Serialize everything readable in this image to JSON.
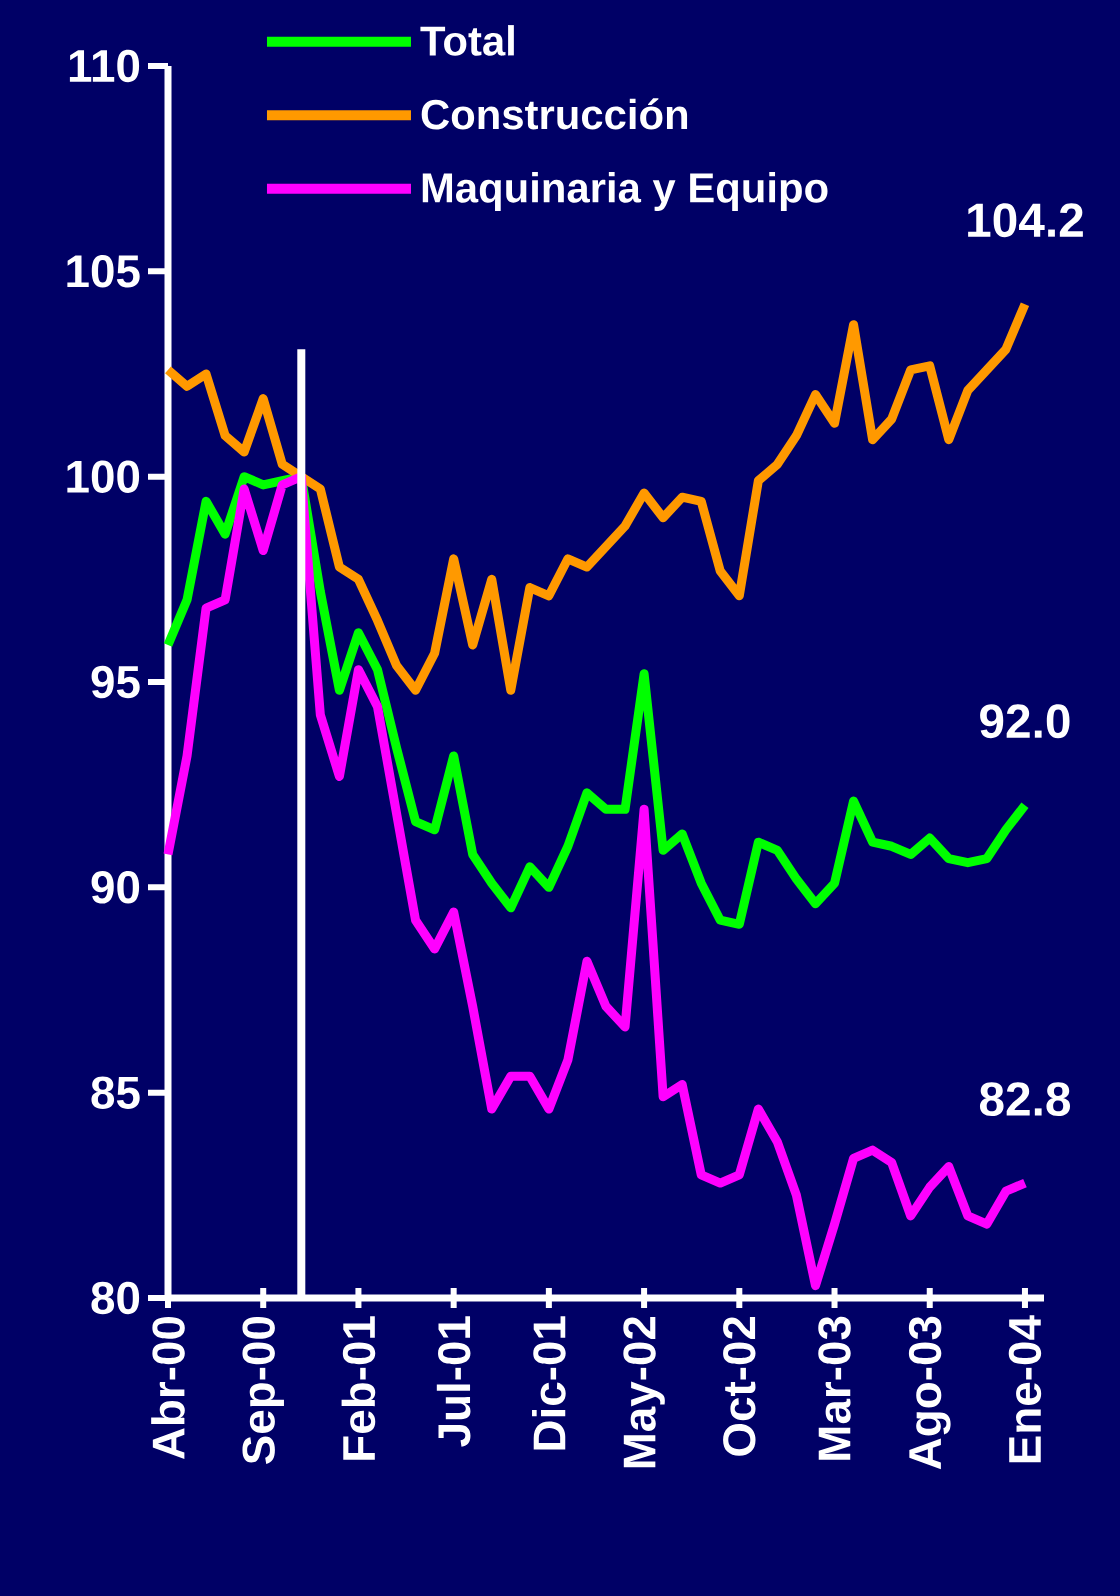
{
  "chart_data": {
    "type": "line",
    "x": [
      "2000-04",
      "2000-05",
      "2000-06",
      "2000-07",
      "2000-08",
      "2000-09",
      "2000-10",
      "2000-11",
      "2000-12",
      "2001-01",
      "2001-02",
      "2001-03",
      "2001-04",
      "2001-05",
      "2001-06",
      "2001-07",
      "2001-08",
      "2001-09",
      "2001-10",
      "2001-11",
      "2001-12",
      "2002-01",
      "2002-02",
      "2002-03",
      "2002-04",
      "2002-05",
      "2002-06",
      "2002-07",
      "2002-08",
      "2002-09",
      "2002-10",
      "2002-11",
      "2002-12",
      "2003-01",
      "2003-02",
      "2003-03",
      "2003-04",
      "2003-05",
      "2003-06",
      "2003-07",
      "2003-08",
      "2003-09",
      "2003-10",
      "2003-11",
      "2003-12",
      "2004-01"
    ],
    "series": [
      {
        "name": "Total",
        "color": "#00ff00",
        "values": [
          95.9,
          97.0,
          99.4,
          98.6,
          100.0,
          99.8,
          99.9,
          100.0,
          97.2,
          94.8,
          96.2,
          95.3,
          93.4,
          91.6,
          91.4,
          93.2,
          90.8,
          90.1,
          89.5,
          90.5,
          90.0,
          91.0,
          92.3,
          91.9,
          91.9,
          95.2,
          90.9,
          91.3,
          90.1,
          89.2,
          89.1,
          91.1,
          90.9,
          90.2,
          89.6,
          90.1,
          92.1,
          91.1,
          91.0,
          90.8,
          91.2,
          90.7,
          90.6,
          90.7,
          91.4,
          92.0
        ]
      },
      {
        "name": "Construcción",
        "color": "#ff9900",
        "values": [
          102.6,
          102.2,
          102.5,
          101.0,
          100.6,
          101.9,
          100.3,
          100.0,
          99.7,
          97.8,
          97.5,
          96.5,
          95.4,
          94.8,
          95.7,
          98.0,
          95.9,
          97.5,
          94.8,
          97.3,
          97.1,
          98.0,
          97.8,
          98.3,
          98.8,
          99.6,
          99.0,
          99.5,
          99.4,
          97.7,
          97.1,
          99.9,
          100.3,
          101.0,
          102.0,
          101.3,
          103.7,
          100.9,
          101.4,
          102.6,
          102.7,
          100.9,
          102.1,
          102.6,
          103.1,
          104.2
        ]
      },
      {
        "name": "Maquinaria y Equipo",
        "color": "#ff00ff",
        "values": [
          90.8,
          93.2,
          96.8,
          97.0,
          99.7,
          98.2,
          99.8,
          100.0,
          94.2,
          92.7,
          95.3,
          94.4,
          91.8,
          89.2,
          88.5,
          89.4,
          87.1,
          84.6,
          85.4,
          85.4,
          84.6,
          85.8,
          88.2,
          87.1,
          86.6,
          91.9,
          84.9,
          85.2,
          83.0,
          82.8,
          83.0,
          84.6,
          83.8,
          82.5,
          80.3,
          81.8,
          83.4,
          83.6,
          83.3,
          82.0,
          82.7,
          83.2,
          82.0,
          81.8,
          82.6,
          82.8
        ]
      }
    ],
    "xlim": [
      "2000-04",
      "2004-02"
    ],
    "xticks": [
      {
        "value": "2000-04",
        "label": "Abr-00"
      },
      {
        "value": "2000-09",
        "label": "Sep-00"
      },
      {
        "value": "2001-02",
        "label": "Feb-01"
      },
      {
        "value": "2001-07",
        "label": "Jul-01"
      },
      {
        "value": "2001-12",
        "label": "Dic-01"
      },
      {
        "value": "2002-05",
        "label": "May-02"
      },
      {
        "value": "2002-10",
        "label": "Oct-02"
      },
      {
        "value": "2003-03",
        "label": "Mar-03"
      },
      {
        "value": "2003-08",
        "label": "Ago-03"
      },
      {
        "value": "2004-01",
        "label": "Ene-04"
      }
    ],
    "ylim": [
      80,
      110
    ],
    "yticks": [
      80,
      85,
      90,
      95,
      100,
      105,
      110
    ],
    "ref_lines": [
      {
        "axis": "x",
        "value": "2000-11",
        "color": "#ffffff"
      }
    ],
    "annotations": [
      {
        "text": "104.2",
        "x": "2004-01",
        "y": 104.2
      },
      {
        "text": "92.0",
        "x": "2004-01",
        "y": 92.0
      },
      {
        "text": "82.8",
        "x": "2004-01",
        "y": 82.8
      }
    ],
    "grid": false,
    "legend": "top left"
  }
}
